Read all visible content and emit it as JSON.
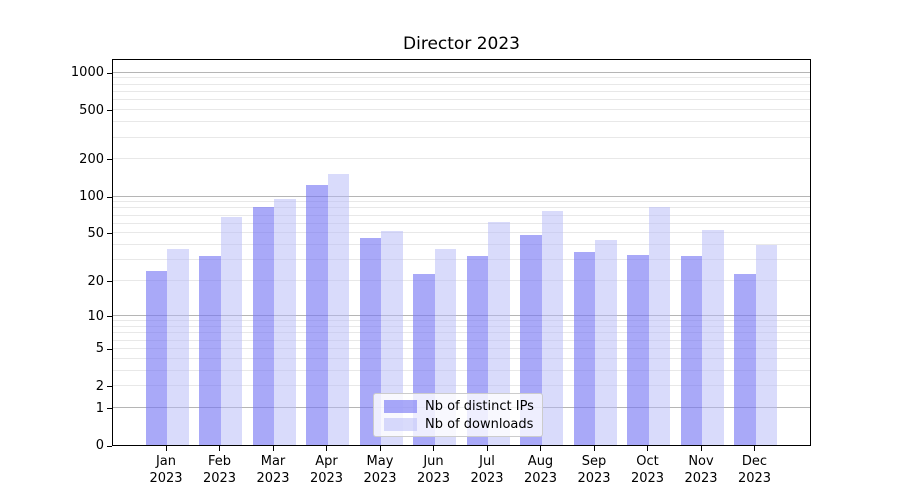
{
  "chart_data": {
    "type": "bar",
    "title": "Director 2023",
    "categories": [
      "Jan 2023",
      "Feb 2023",
      "Mar 2023",
      "Apr 2023",
      "May 2023",
      "Jun 2023",
      "Jul 2023",
      "Aug 2023",
      "Sep 2023",
      "Oct 2023",
      "Nov 2023",
      "Dec 2023"
    ],
    "series": [
      {
        "name": "Nb of distinct IPs",
        "slug": "distinct-ips",
        "color": "rgba(116,116,243,0.62)",
        "values": [
          24,
          32,
          81,
          123,
          45,
          23,
          32,
          48,
          35,
          33,
          32,
          23
        ]
      },
      {
        "name": "Nb of downloads",
        "slug": "downloads",
        "color": "rgba(180,184,248,0.5)",
        "values": [
          37,
          67,
          95,
          151,
          52,
          37,
          61,
          75,
          44,
          82,
          53,
          40
        ]
      }
    ],
    "xlabel": "",
    "ylabel": "",
    "yscale": "log10(value+1)",
    "ylim": [
      0,
      1304
    ],
    "yticks": [
      0,
      1,
      2,
      5,
      10,
      20,
      50,
      100,
      200,
      500,
      1000
    ],
    "grid": {
      "major_ticks": [
        1,
        10,
        100,
        1000
      ],
      "minor_ticks": [
        2,
        3,
        4,
        5,
        6,
        7,
        8,
        9,
        20,
        30,
        40,
        50,
        60,
        70,
        80,
        90,
        200,
        300,
        400,
        500,
        600,
        700,
        800,
        900
      ],
      "major_color": "#b5b5b5",
      "minor_color": "#e8e8e8"
    },
    "legend": {
      "position": "lower center"
    }
  }
}
